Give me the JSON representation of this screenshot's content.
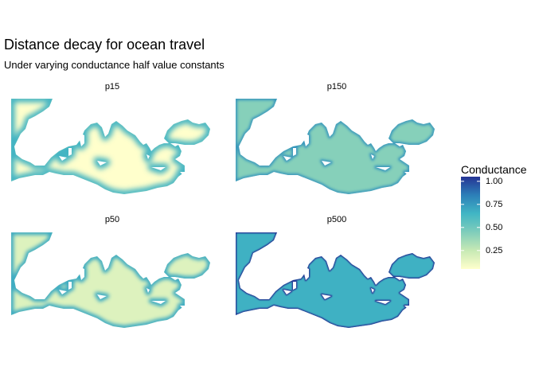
{
  "title": "Distance decay for ocean travel",
  "subtitle": "Under varying conductance half value constants",
  "panels": [
    {
      "label": "p15",
      "halfValue": 15
    },
    {
      "label": "p150",
      "halfValue": 150
    },
    {
      "label": "p50",
      "halfValue": 50
    },
    {
      "label": "p500",
      "halfValue": 500
    }
  ],
  "legend": {
    "title": "Conductance",
    "ticks": [
      "1.00",
      "0.75",
      "0.50",
      "0.25"
    ],
    "tick_values": [
      1.0,
      0.75,
      0.5,
      0.25
    ],
    "range": [
      0.05,
      1.05
    ],
    "colors": [
      "#ffffcc",
      "#c7e9b4",
      "#7fcdbb",
      "#41b6c4",
      "#2c7fb8",
      "#253494"
    ]
  }
}
